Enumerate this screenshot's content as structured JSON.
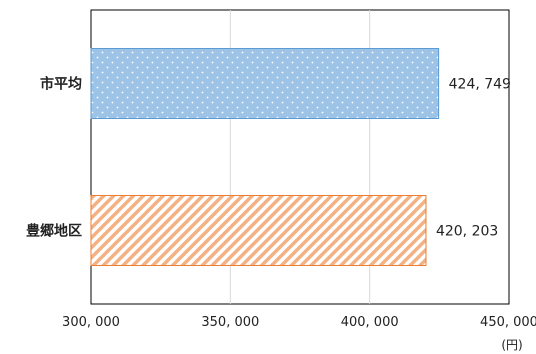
{
  "chart_data": {
    "type": "bar",
    "orientation": "horizontal",
    "categories": [
      "市平均",
      "豊郷地区"
    ],
    "values": [
      424749,
      420203
    ],
    "value_labels": [
      "424, 749",
      "420, 203"
    ],
    "xlim": [
      300000,
      450000
    ],
    "x_ticks": [
      300000,
      350000,
      400000,
      450000
    ],
    "x_tick_labels": [
      "300, 000",
      "350, 000",
      "400, 000",
      "450, 000"
    ],
    "x_unit": "(円)",
    "grid": "vertical",
    "title": "",
    "xlabel": "",
    "ylabel": "",
    "series_styles": [
      {
        "category": "市平均",
        "fill": "#9dc3e6",
        "stroke": "#5b9bd5",
        "pattern": "dots"
      },
      {
        "category": "豊郷地区",
        "fill": "#f4b183",
        "stroke": "#ed7d31",
        "pattern": "diagonal-stripes"
      }
    ]
  }
}
